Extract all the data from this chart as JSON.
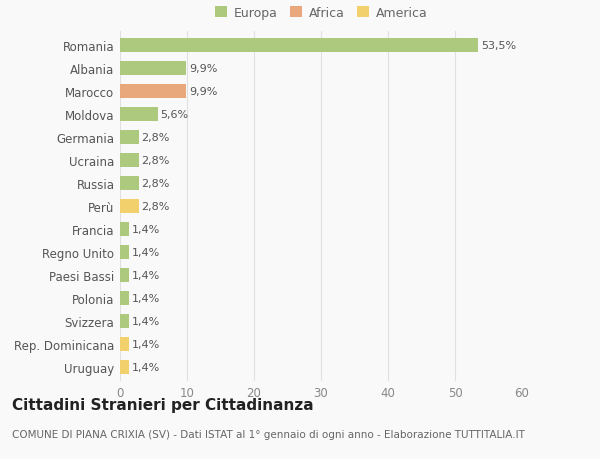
{
  "countries": [
    "Romania",
    "Albania",
    "Marocco",
    "Moldova",
    "Germania",
    "Ucraina",
    "Russia",
    "Perù",
    "Francia",
    "Regno Unito",
    "Paesi Bassi",
    "Polonia",
    "Svizzera",
    "Rep. Dominicana",
    "Uruguay"
  ],
  "values": [
    53.5,
    9.9,
    9.9,
    5.6,
    2.8,
    2.8,
    2.8,
    2.8,
    1.4,
    1.4,
    1.4,
    1.4,
    1.4,
    1.4,
    1.4
  ],
  "continents": [
    "Europa",
    "Europa",
    "Africa",
    "Europa",
    "Europa",
    "Europa",
    "Europa",
    "America",
    "Europa",
    "Europa",
    "Europa",
    "Europa",
    "Europa",
    "America",
    "America"
  ],
  "labels": [
    "53,5%",
    "9,9%",
    "9,9%",
    "5,6%",
    "2,8%",
    "2,8%",
    "2,8%",
    "2,8%",
    "1,4%",
    "1,4%",
    "1,4%",
    "1,4%",
    "1,4%",
    "1,4%",
    "1,4%"
  ],
  "colors": {
    "Europa": "#adc97e",
    "Africa": "#e9a87c",
    "America": "#f2d06b"
  },
  "legend_items": [
    "Europa",
    "Africa",
    "America"
  ],
  "legend_colors": [
    "#adc97e",
    "#e9a87c",
    "#f2d06b"
  ],
  "xlim": [
    0,
    60
  ],
  "xticks": [
    0,
    10,
    20,
    30,
    40,
    50,
    60
  ],
  "title": "Cittadini Stranieri per Cittadinanza",
  "subtitle": "COMUNE DI PIANA CRIXIA (SV) - Dati ISTAT al 1° gennaio di ogni anno - Elaborazione TUTTITALIA.IT",
  "background_color": "#f9f9f9",
  "grid_color": "#e0e0e0",
  "bar_label_fontsize": 8,
  "ytick_fontsize": 8.5,
  "xtick_fontsize": 8.5,
  "title_fontsize": 11,
  "subtitle_fontsize": 7.5,
  "bar_height": 0.6
}
